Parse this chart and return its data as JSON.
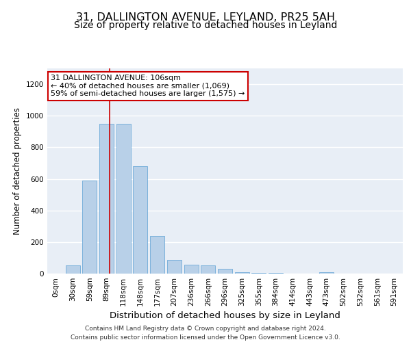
{
  "title1": "31, DALLINGTON AVENUE, LEYLAND, PR25 5AH",
  "title2": "Size of property relative to detached houses in Leyland",
  "xlabel": "Distribution of detached houses by size in Leyland",
  "ylabel": "Number of detached properties",
  "bar_labels": [
    "0sqm",
    "30sqm",
    "59sqm",
    "89sqm",
    "118sqm",
    "148sqm",
    "177sqm",
    "207sqm",
    "236sqm",
    "266sqm",
    "296sqm",
    "325sqm",
    "355sqm",
    "384sqm",
    "414sqm",
    "443sqm",
    "473sqm",
    "502sqm",
    "532sqm",
    "561sqm",
    "591sqm"
  ],
  "bar_values": [
    0,
    50,
    590,
    950,
    950,
    680,
    240,
    85,
    55,
    50,
    30,
    10,
    5,
    5,
    0,
    0,
    10,
    0,
    0,
    0,
    0
  ],
  "bar_color": "#b8d0e8",
  "bar_edge_color": "#5a9fd4",
  "background_color": "#e8eef6",
  "grid_color": "#ffffff",
  "annotation_line1": "31 DALLINGTON AVENUE: 106sqm",
  "annotation_line2": "← 40% of detached houses are smaller (1,069)",
  "annotation_line3": "59% of semi-detached houses are larger (1,575) →",
  "annotation_box_color": "#ffffff",
  "annotation_box_edge": "#cc0000",
  "vline_color": "#cc0000",
  "vline_x": 3.17,
  "ylim": [
    0,
    1300
  ],
  "yticks": [
    0,
    200,
    400,
    600,
    800,
    1000,
    1200
  ],
  "footer": "Contains HM Land Registry data © Crown copyright and database right 2024.\nContains public sector information licensed under the Open Government Licence v3.0.",
  "title1_fontsize": 11.5,
  "title2_fontsize": 10,
  "xlabel_fontsize": 9.5,
  "ylabel_fontsize": 8.5,
  "tick_fontsize": 7.5,
  "footer_fontsize": 6.5,
  "annotation_fontsize": 8
}
